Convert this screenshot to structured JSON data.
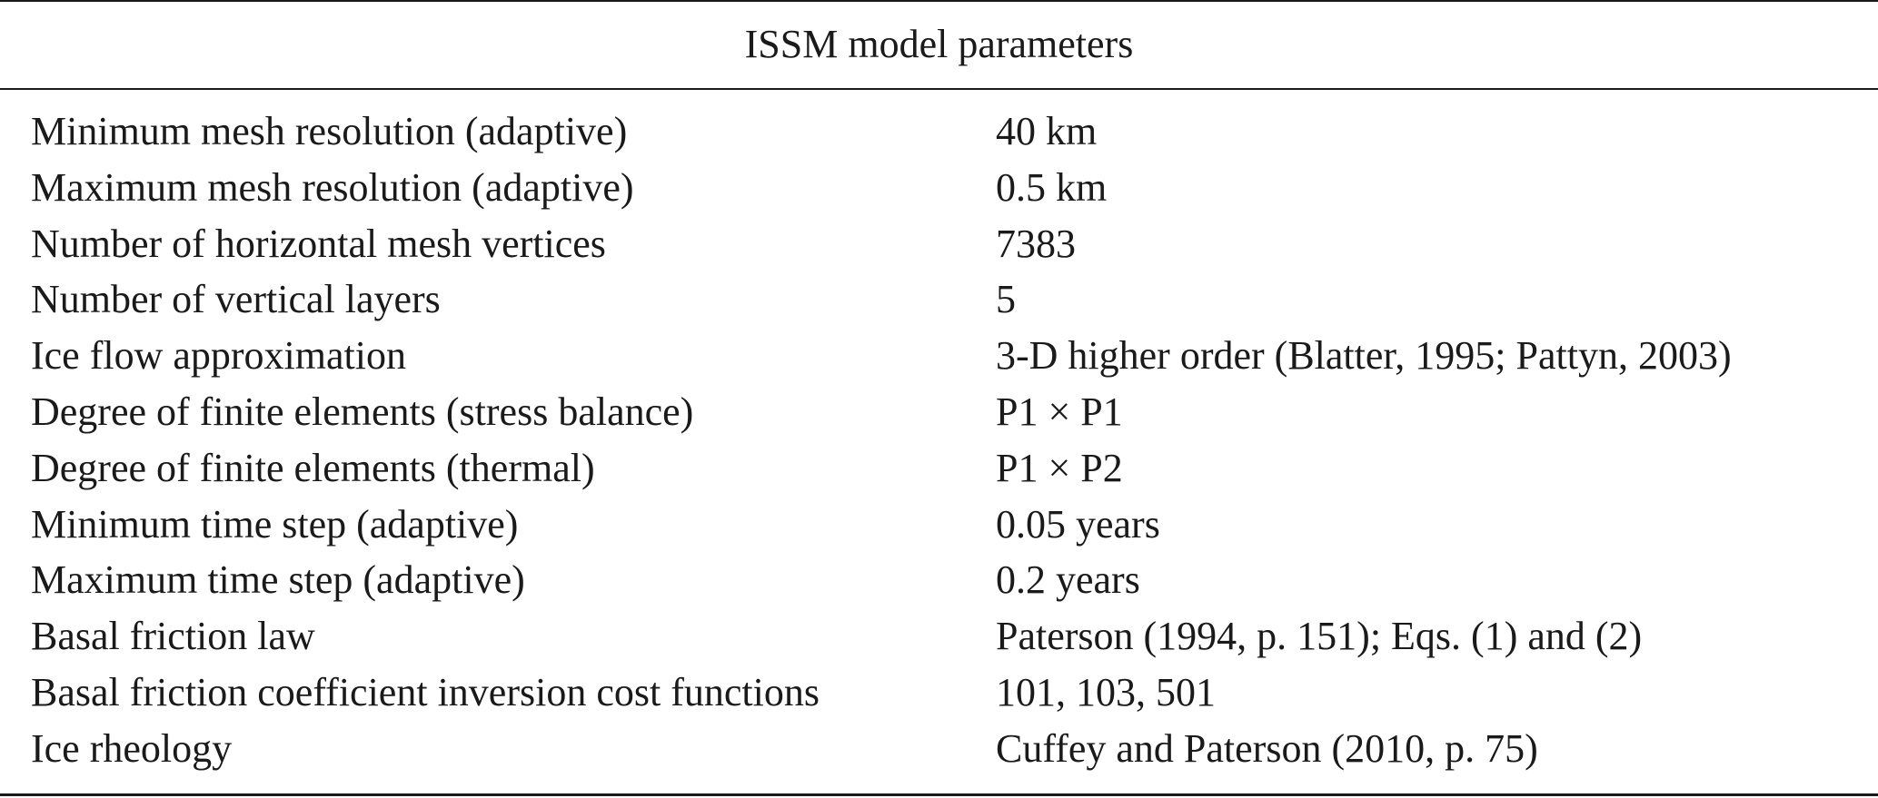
{
  "table": {
    "header": "ISSM model parameters",
    "rows": [
      {
        "parameter": "Minimum mesh resolution (adaptive)",
        "value": "40 km"
      },
      {
        "parameter": "Maximum mesh resolution (adaptive)",
        "value": "0.5 km"
      },
      {
        "parameter": "Number of horizontal mesh vertices",
        "value": "7383"
      },
      {
        "parameter": "Number of vertical layers",
        "value": "5"
      },
      {
        "parameter": "Ice flow approximation",
        "value": "3-D higher order (Blatter, 1995; Pattyn, 2003)"
      },
      {
        "parameter": "Degree of finite elements (stress balance)",
        "value": "P1 × P1"
      },
      {
        "parameter": "Degree of finite elements (thermal)",
        "value": "P1 × P2"
      },
      {
        "parameter": "Minimum time step (adaptive)",
        "value": "0.05 years"
      },
      {
        "parameter": "Maximum time step (adaptive)",
        "value": "0.2 years"
      },
      {
        "parameter": "Basal friction law",
        "value": "Paterson (1994, p. 151); Eqs. (1) and (2)"
      },
      {
        "parameter": "Basal friction coefficient inversion cost functions",
        "value": "101, 103, 501"
      },
      {
        "parameter": "Ice rheology",
        "value": "Cuffey and Paterson (2010, p. 75)"
      }
    ]
  }
}
